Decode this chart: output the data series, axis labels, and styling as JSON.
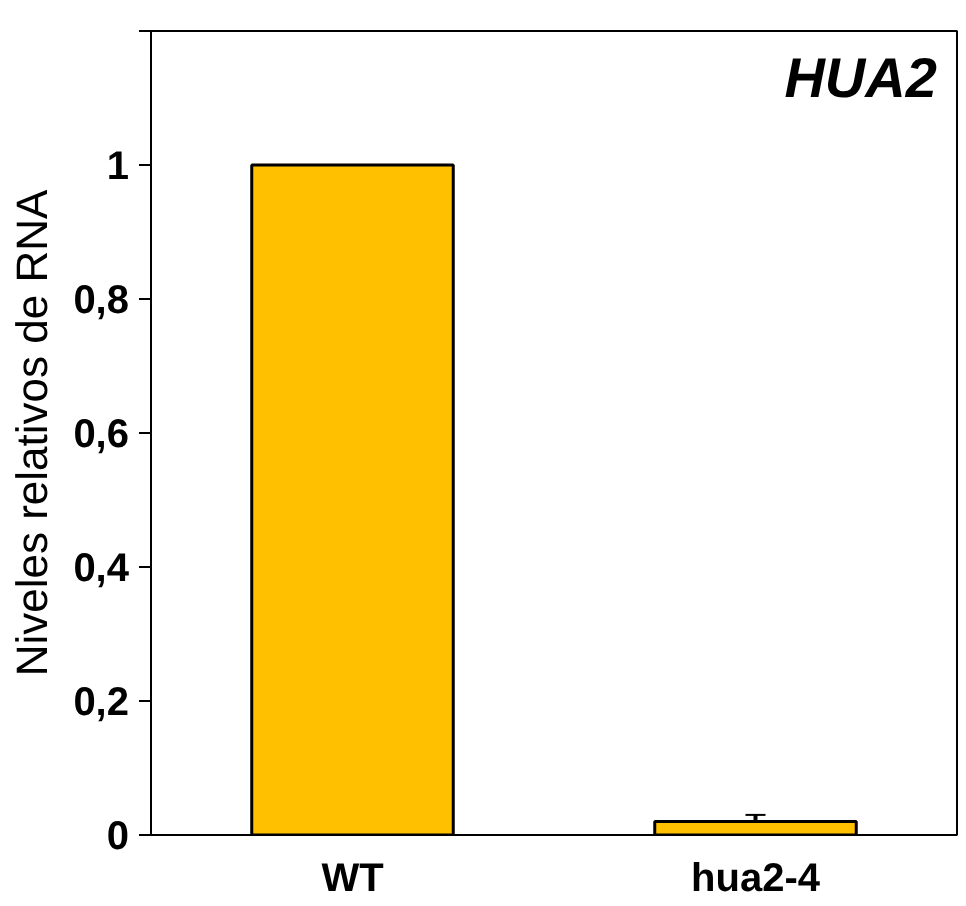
{
  "chart_data": {
    "type": "bar",
    "title": "HUA2",
    "ylabel": "Niveles relativos de RNA",
    "categories": [
      "WT",
      "hua2-4"
    ],
    "values": [
      1,
      0.02
    ],
    "errors": [
      null,
      0.01
    ],
    "color": "#ffc000",
    "ylim": [
      0,
      1.2
    ],
    "yticks": [
      0,
      {
        "value": 0.2,
        "label": "0,2"
      },
      {
        "value": 0.4,
        "label": "0,4"
      },
      {
        "value": 0.6,
        "label": "0,6"
      },
      {
        "value": 0.8,
        "label": "0,8"
      },
      1,
      {
        "value": 1.2,
        "label": null
      }
    ],
    "grid": false
  }
}
